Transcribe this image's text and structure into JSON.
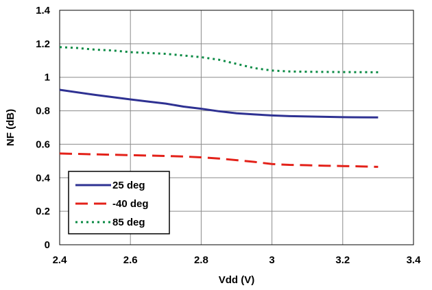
{
  "chart_data": {
    "type": "line",
    "xlabel": "Vdd (V)",
    "ylabel": "NF (dB)",
    "xlim": [
      2.4,
      3.4
    ],
    "ylim": [
      0,
      1.4
    ],
    "xticks": [
      "2.4",
      "2.6",
      "2.8",
      "3",
      "3.2",
      "3.4"
    ],
    "yticks": [
      "0",
      "0.2",
      "0.4",
      "0.6",
      "0.8",
      "1",
      "1.2",
      "1.4"
    ],
    "grid": true,
    "legend_position": "bottom-left",
    "series": [
      {
        "name": "25 deg",
        "color": "#2e3192",
        "dash": "solid",
        "x": [
          2.4,
          2.5,
          2.6,
          2.65,
          2.7,
          2.75,
          2.8,
          2.85,
          2.9,
          2.95,
          3.0,
          3.05,
          3.1,
          3.15,
          3.2,
          3.25,
          3.3
        ],
        "y": [
          0.925,
          0.895,
          0.868,
          0.855,
          0.843,
          0.825,
          0.812,
          0.797,
          0.785,
          0.778,
          0.772,
          0.768,
          0.766,
          0.764,
          0.762,
          0.761,
          0.76
        ]
      },
      {
        "name": "-40 deg",
        "color": "#e32119",
        "dash": "long-dash",
        "x": [
          2.4,
          2.5,
          2.6,
          2.7,
          2.75,
          2.8,
          2.85,
          2.9,
          2.95,
          3.0,
          3.05,
          3.1,
          3.15,
          3.2,
          3.25,
          3.3
        ],
        "y": [
          0.545,
          0.54,
          0.535,
          0.53,
          0.527,
          0.522,
          0.515,
          0.505,
          0.495,
          0.482,
          0.477,
          0.475,
          0.472,
          0.47,
          0.468,
          0.465
        ]
      },
      {
        "name": "85 deg",
        "color": "#0a8a44",
        "dash": "dotted",
        "x": [
          2.4,
          2.45,
          2.5,
          2.55,
          2.6,
          2.65,
          2.7,
          2.75,
          2.8,
          2.85,
          2.9,
          2.95,
          3.0,
          3.05,
          3.1,
          3.2,
          3.3
        ],
        "y": [
          1.18,
          1.175,
          1.165,
          1.16,
          1.15,
          1.145,
          1.14,
          1.13,
          1.12,
          1.105,
          1.08,
          1.055,
          1.04,
          1.035,
          1.033,
          1.031,
          1.03
        ]
      }
    ]
  }
}
